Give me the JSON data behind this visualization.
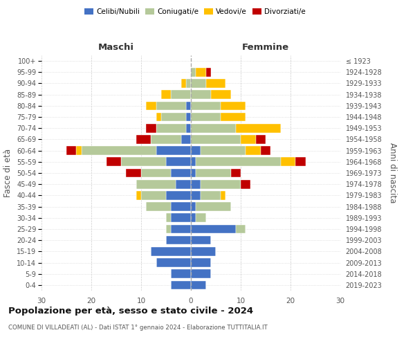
{
  "age_groups": [
    "0-4",
    "5-9",
    "10-14",
    "15-19",
    "20-24",
    "25-29",
    "30-34",
    "35-39",
    "40-44",
    "45-49",
    "50-54",
    "55-59",
    "60-64",
    "65-69",
    "70-74",
    "75-79",
    "80-84",
    "85-89",
    "90-94",
    "95-99",
    "100+"
  ],
  "birth_years": [
    "2019-2023",
    "2014-2018",
    "2009-2013",
    "2004-2008",
    "1999-2003",
    "1994-1998",
    "1989-1993",
    "1984-1988",
    "1979-1983",
    "1974-1978",
    "1969-1973",
    "1964-1968",
    "1959-1963",
    "1954-1958",
    "1949-1953",
    "1944-1948",
    "1939-1943",
    "1934-1938",
    "1929-1933",
    "1924-1928",
    "≤ 1923"
  ],
  "colors": {
    "celibi": "#4472c4",
    "coniugati": "#b5c99a",
    "vedovi": "#ffc000",
    "divorziati": "#c00000"
  },
  "males": {
    "celibi": [
      4,
      4,
      7,
      8,
      5,
      4,
      4,
      4,
      5,
      3,
      4,
      5,
      7,
      2,
      1,
      1,
      1,
      0,
      0,
      0,
      0
    ],
    "coniugati": [
      0,
      0,
      0,
      0,
      0,
      1,
      1,
      5,
      5,
      8,
      6,
      9,
      15,
      6,
      6,
      5,
      6,
      4,
      1,
      0,
      0
    ],
    "vedovi": [
      0,
      0,
      0,
      0,
      0,
      0,
      0,
      0,
      1,
      0,
      0,
      0,
      1,
      0,
      0,
      1,
      2,
      2,
      1,
      0,
      0
    ],
    "divorziati": [
      0,
      0,
      0,
      0,
      0,
      0,
      0,
      0,
      0,
      0,
      3,
      3,
      2,
      3,
      2,
      0,
      0,
      0,
      0,
      0,
      0
    ]
  },
  "females": {
    "celibi": [
      3,
      4,
      4,
      5,
      4,
      9,
      1,
      1,
      2,
      2,
      1,
      1,
      2,
      0,
      0,
      0,
      0,
      0,
      0,
      0,
      0
    ],
    "coniugati": [
      0,
      0,
      0,
      0,
      0,
      2,
      2,
      7,
      4,
      8,
      7,
      17,
      9,
      10,
      9,
      6,
      6,
      4,
      3,
      1,
      0
    ],
    "vedovi": [
      0,
      0,
      0,
      0,
      0,
      0,
      0,
      0,
      1,
      0,
      0,
      3,
      3,
      3,
      9,
      5,
      5,
      4,
      4,
      2,
      0
    ],
    "divorziati": [
      0,
      0,
      0,
      0,
      0,
      0,
      0,
      0,
      0,
      2,
      2,
      2,
      2,
      2,
      0,
      0,
      0,
      0,
      0,
      1,
      0
    ]
  },
  "xlim": 30,
  "title": "Popolazione per età, sesso e stato civile - 2024",
  "subtitle": "COMUNE DI VILLADEATI (AL) - Dati ISTAT 1° gennaio 2024 - Elaborazione TUTTITALIA.IT",
  "ylabel_left": "Fasce di età",
  "ylabel_right": "Anni di nascita",
  "xlabel_left": "Maschi",
  "xlabel_right": "Femmine",
  "background_color": "#ffffff"
}
